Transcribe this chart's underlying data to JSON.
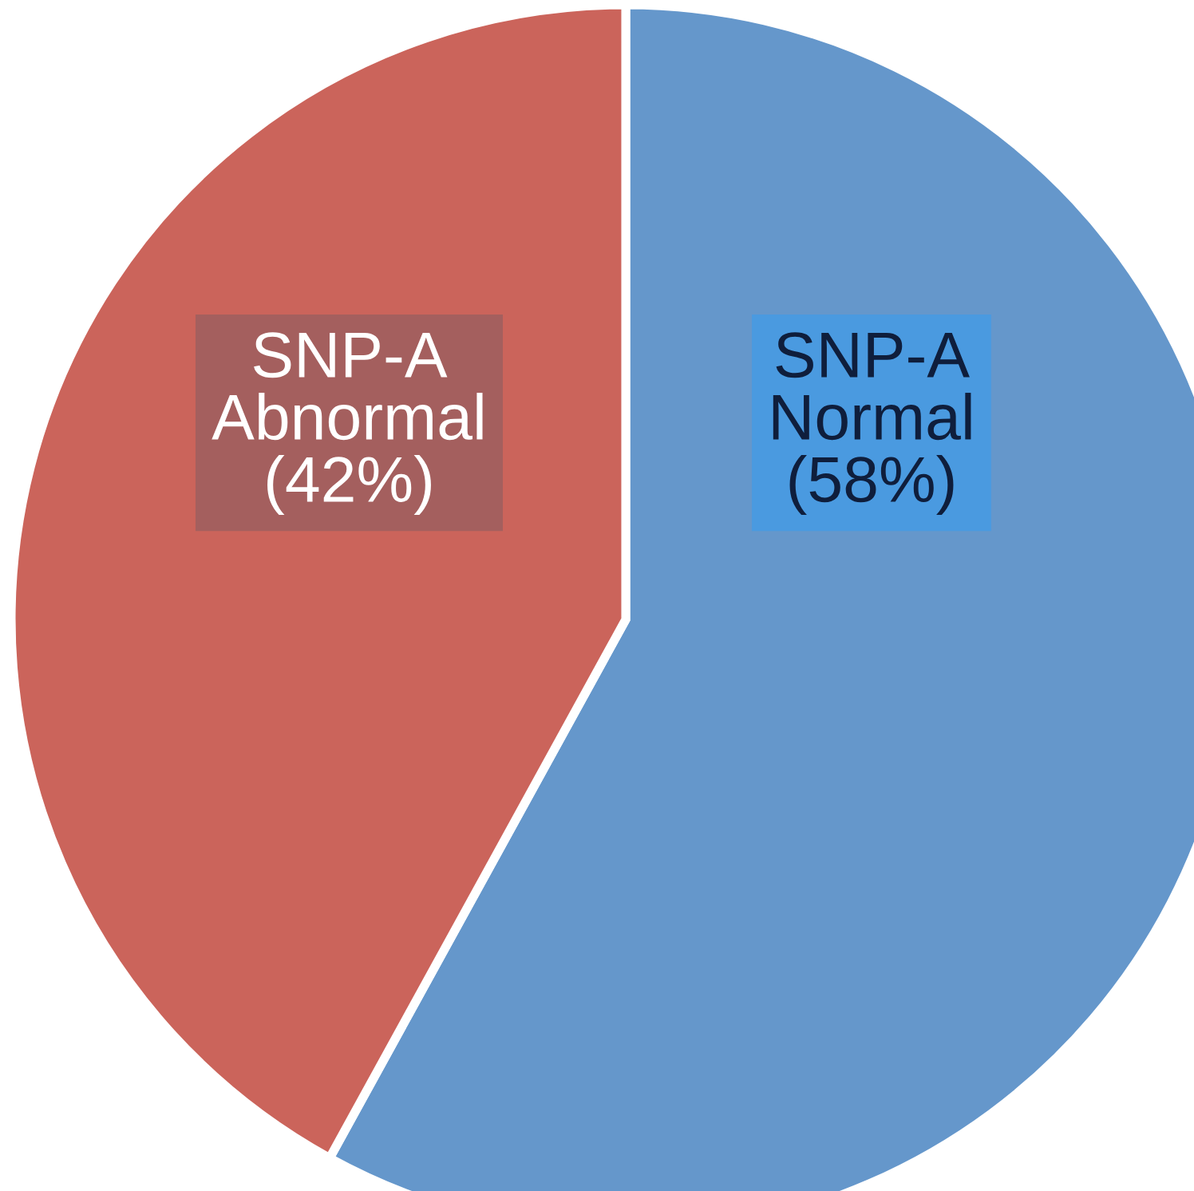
{
  "chart_data": {
    "type": "pie",
    "categories": [
      "SNP-A Normal",
      "SNP-A Abnormal"
    ],
    "values": [
      58,
      42
    ],
    "colors": [
      "#6597cb",
      "#cb645b"
    ],
    "value_labels": [
      "(58%)",
      "(42%)"
    ]
  }
}
